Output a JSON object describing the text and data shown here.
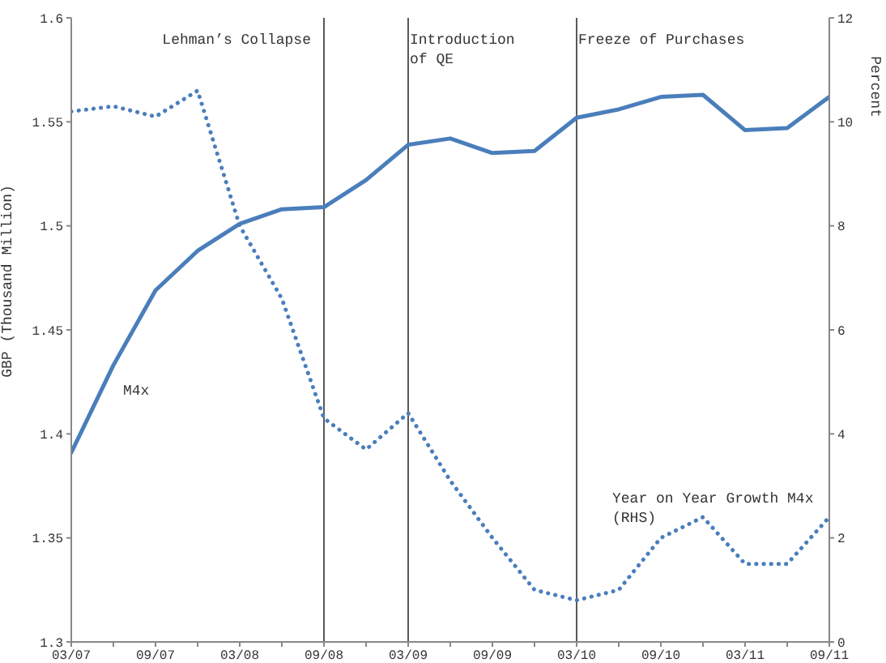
{
  "chart_data": {
    "type": "line",
    "categories": [
      "03/07",
      null,
      "09/07",
      null,
      "03/08",
      null,
      "09/08",
      null,
      "03/09",
      null,
      "09/09",
      null,
      "03/10",
      null,
      "09/10",
      null,
      "03/11",
      null,
      "09/11"
    ],
    "series": [
      {
        "name": "M4x",
        "color": "#4a7ebb",
        "line_style": "solid",
        "values": [
          1.391,
          1.433,
          1.469,
          1.488,
          1.501,
          1.508,
          1.509,
          1.522,
          1.539,
          1.542,
          1.535,
          1.536,
          1.552,
          1.556,
          1.562,
          1.563,
          1.546,
          1.547,
          1.562
        ]
      },
      {
        "name": "Year on Year Growth M4x (RHS)",
        "color": "#4a7ebb",
        "line_style": "dotted",
        "axis": "y2",
        "values": [
          10.2,
          10.3,
          10.1,
          10.6,
          8.0,
          6.6,
          4.3,
          3.7,
          4.4,
          3.1,
          2.0,
          1.0,
          0.8,
          1.0,
          2.0,
          2.4,
          1.5,
          1.5,
          2.4
        ]
      }
    ],
    "ylabel": "GBP (Thousand Million)",
    "y2label": "Percent",
    "ylim": [
      1.3,
      1.6
    ],
    "yticks": [
      1.3,
      1.35,
      1.4,
      1.45,
      1.5,
      1.55,
      1.6
    ],
    "y2lim": [
      0,
      12
    ],
    "y2ticks": [
      0,
      2,
      4,
      6,
      8,
      10,
      12
    ],
    "ref_lines": [
      {
        "axis": "x",
        "value": "09/08",
        "label": "Lehman’s Collapse",
        "color": "#595959"
      },
      {
        "axis": "x",
        "value": "03/09",
        "label": "Introduction of QE",
        "color": "#595959"
      },
      {
        "axis": "x",
        "value": "03/10",
        "label": "Freeze of Purchases",
        "color": "#595959"
      }
    ],
    "marker": "none"
  }
}
